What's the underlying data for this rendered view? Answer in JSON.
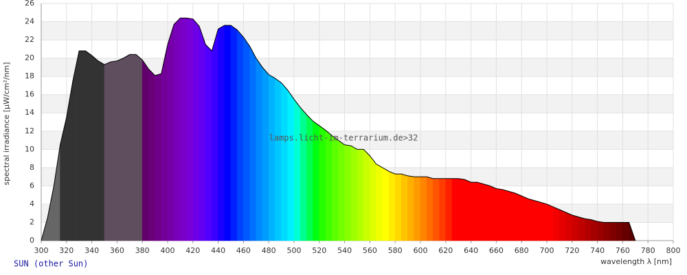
{
  "chart_data": {
    "type": "spectrum",
    "title": "SUN (other Sun)",
    "watermark": "lamps.licht-im-terrarium.de>32",
    "x_label": "wavelength λ [nm]",
    "y_label": "spectral irradiance [µW/cm²/nm]",
    "x": [
      300,
      305,
      310,
      315,
      320,
      325,
      330,
      335,
      340,
      345,
      350,
      355,
      360,
      365,
      370,
      375,
      380,
      385,
      390,
      395,
      400,
      405,
      410,
      415,
      420,
      425,
      430,
      435,
      440,
      445,
      450,
      455,
      460,
      465,
      470,
      475,
      480,
      485,
      490,
      495,
      500,
      505,
      510,
      515,
      520,
      525,
      530,
      535,
      540,
      545,
      550,
      555,
      560,
      565,
      570,
      575,
      580,
      585,
      590,
      595,
      600,
      605,
      610,
      615,
      620,
      625,
      630,
      635,
      640,
      645,
      650,
      655,
      660,
      665,
      670,
      675,
      680,
      685,
      690,
      695,
      700,
      705,
      710,
      715,
      720,
      725,
      730,
      735,
      740,
      745,
      750,
      755,
      760,
      765,
      770
    ],
    "values": [
      0,
      2.5,
      6,
      10.5,
      13.5,
      17.5,
      20.8,
      20.8,
      20.3,
      19.7,
      19.3,
      19.6,
      19.7,
      20,
      20.4,
      20.4,
      19.8,
      18.8,
      18.1,
      18.3,
      21.5,
      23.7,
      24.4,
      24.4,
      24.3,
      23.5,
      21.5,
      20.8,
      23.2,
      23.6,
      23.6,
      23.1,
      22.3,
      21.3,
      20,
      19,
      18.2,
      17.8,
      17.3,
      16.5,
      15.5,
      14.6,
      13.8,
      13.1,
      12.6,
      12.1,
      11.5,
      11,
      10.5,
      10.4,
      10,
      10,
      9.3,
      8.4,
      8,
      7.6,
      7.3,
      7.3,
      7.1,
      7,
      7,
      7,
      6.8,
      6.8,
      6.8,
      6.8,
      6.8,
      6.7,
      6.4,
      6.4,
      6.2,
      6,
      5.7,
      5.6,
      5.4,
      5.2,
      4.9,
      4.6,
      4.4,
      4.2,
      4,
      3.7,
      3.4,
      3.1,
      2.8,
      2.6,
      2.4,
      2.3,
      2.1,
      2,
      2,
      2,
      2,
      2,
      0
    ],
    "colors": [
      "#666666",
      "#666666",
      "#666666",
      "#333333",
      "#333333",
      "#333333",
      "#333333",
      "#333333",
      "#333333",
      "#333333",
      "#5e4e5e",
      "#5e4e5e",
      "#5e4e5e",
      "#5e4e5e",
      "#5e4e5e",
      "#5e4e5e",
      "#61006a",
      "#690078",
      "#6e0088",
      "#720098",
      "#7600a8",
      "#7800b8",
      "#7a00c8",
      "#7700d6",
      "#6e00e6",
      "#6200f4",
      "#4f00ff",
      "#3800ff",
      "#1a00ff",
      "#0000ff",
      "#0020ff",
      "#0040ff",
      "#0058ff",
      "#0070ff",
      "#0088ff",
      "#009dff",
      "#00b3ff",
      "#00c8ff",
      "#00dcff",
      "#00f0ff",
      "#00ffd5",
      "#00ff92",
      "#00ff4e",
      "#00ff10",
      "#24ff00",
      "#40ff00",
      "#5aff00",
      "#72ff00",
      "#88ff00",
      "#9eff00",
      "#b4ff00",
      "#c9ff00",
      "#ddff00",
      "#f0ff00",
      "#ffff00",
      "#ffec00",
      "#ffd800",
      "#ffc400",
      "#ffaf00",
      "#ff9a00",
      "#ff8400",
      "#ff6d00",
      "#ff5500",
      "#ff3c00",
      "#ff2000",
      "#ff0000",
      "#ff0000",
      "#ff0000",
      "#ff0000",
      "#ff0000",
      "#ff0000",
      "#ff0000",
      "#ff0000",
      "#ff0000",
      "#ff0000",
      "#ff0000",
      "#ff0000",
      "#ff0000",
      "#ff0000",
      "#ff0000",
      "#ff0000",
      "#f30000",
      "#e60000",
      "#d90000",
      "#cc0000",
      "#bf0000",
      "#b20000",
      "#a50000",
      "#990000",
      "#8c0000",
      "#800000",
      "#730000",
      "#660000",
      "#590000",
      "#4d0000"
    ],
    "xlim": [
      300,
      800
    ],
    "ylim": [
      0,
      26
    ],
    "xticks": [
      300,
      320,
      340,
      360,
      380,
      400,
      420,
      440,
      460,
      480,
      500,
      520,
      540,
      560,
      580,
      600,
      620,
      640,
      660,
      680,
      700,
      720,
      740,
      760,
      780,
      800
    ],
    "yticks": [
      0,
      2,
      4,
      6,
      8,
      10,
      12,
      14,
      16,
      18,
      20,
      22,
      24,
      26
    ],
    "grid": true
  }
}
